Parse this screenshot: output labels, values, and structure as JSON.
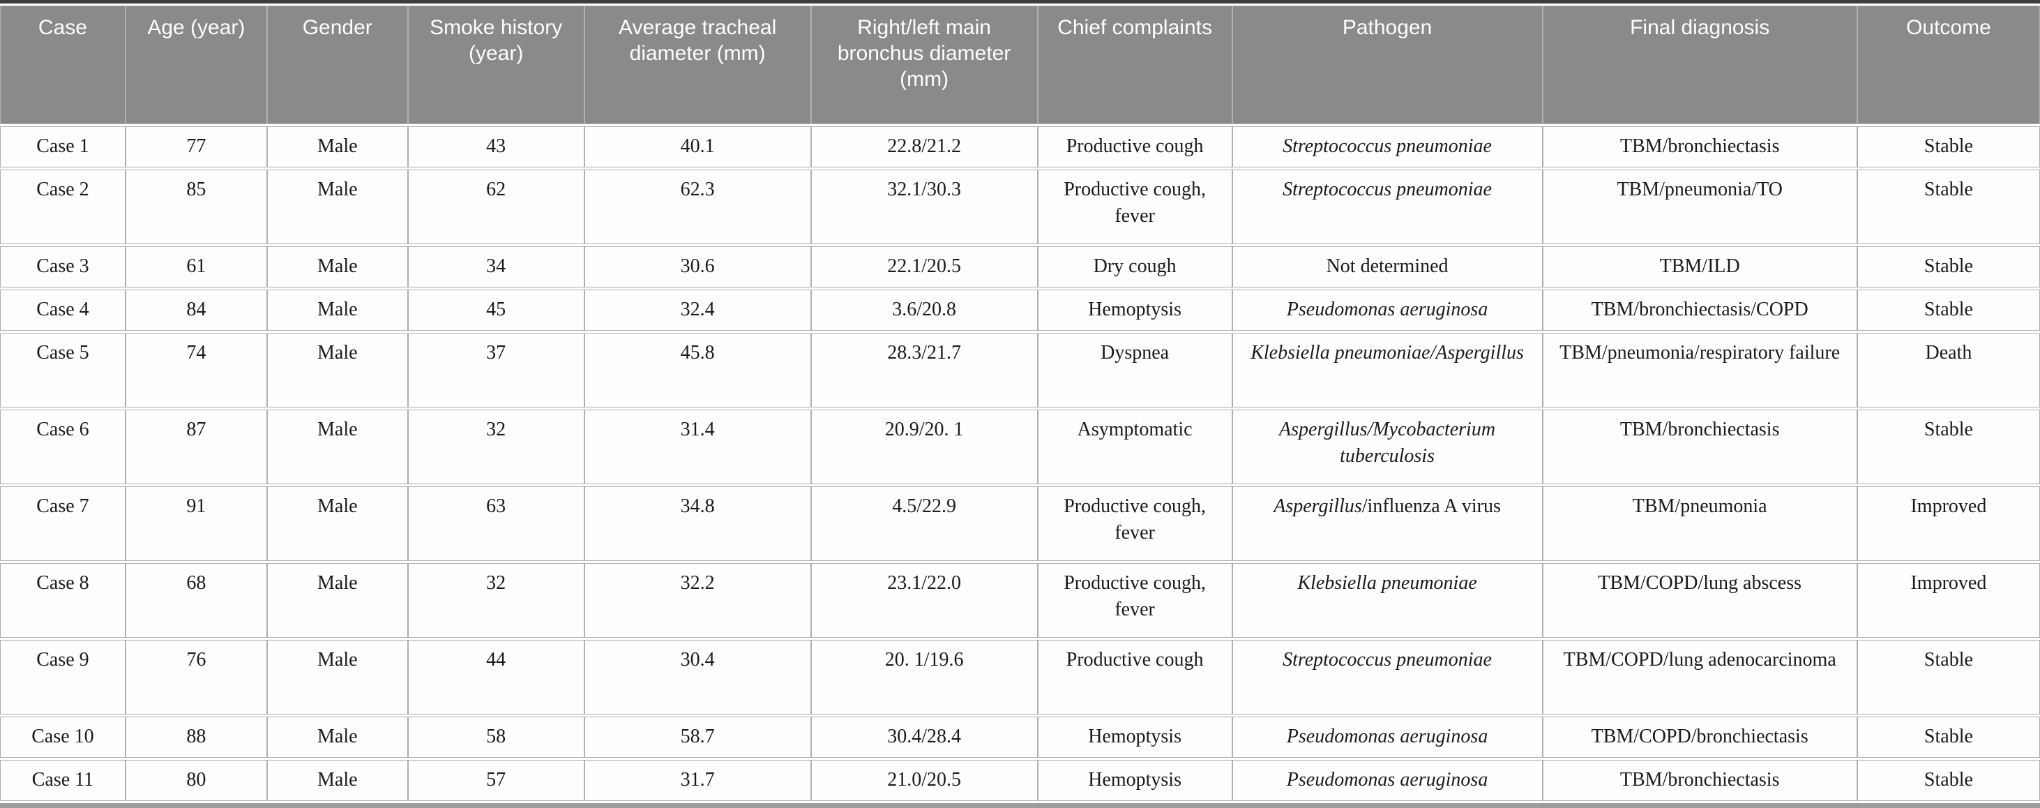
{
  "colors": {
    "header_bg": "#8a8a8a",
    "header_text": "#fdfdfd",
    "body_text": "#1a1a1a",
    "cell_border": "#aeaeae",
    "top_border": "#3d3d3d",
    "bottom_border": "#9c9c9c"
  },
  "table": {
    "columns": [
      "Case",
      "Age (year)",
      "Gender",
      "Smoke history (year)",
      "Average tracheal diameter (mm)",
      "Right/left main bronchus diameter (mm)",
      "Chief complaints",
      "Pathogen",
      "Final diagnosis",
      "Outcome"
    ],
    "rows": [
      {
        "case": "Case 1",
        "age": "77",
        "gender": "Male",
        "smoke": "43",
        "tracheal": "40.1",
        "bronchus": "22.8/21.2",
        "complaints": "Productive cough",
        "pathogen": [
          {
            "text": "Streptococcus pneumoniae",
            "italic": true
          }
        ],
        "diagnosis": "TBM/bronchiectasis",
        "outcome": "Stable",
        "tall": false
      },
      {
        "case": "Case 2",
        "age": "85",
        "gender": "Male",
        "smoke": "62",
        "tracheal": "62.3",
        "bronchus": "32.1/30.3",
        "complaints": "Productive cough, fever",
        "pathogen": [
          {
            "text": "Streptococcus pneumoniae",
            "italic": true
          }
        ],
        "diagnosis": "TBM/pneumonia/TO",
        "outcome": "Stable",
        "tall": true
      },
      {
        "case": "Case 3",
        "age": "61",
        "gender": "Male",
        "smoke": "34",
        "tracheal": "30.6",
        "bronchus": "22.1/20.5",
        "complaints": "Dry cough",
        "pathogen": [
          {
            "text": "Not determined",
            "italic": false
          }
        ],
        "diagnosis": "TBM/ILD",
        "outcome": "Stable",
        "tall": false
      },
      {
        "case": "Case 4",
        "age": "84",
        "gender": "Male",
        "smoke": "45",
        "tracheal": "32.4",
        "bronchus": "3.6/20.8",
        "complaints": "Hemoptysis",
        "pathogen": [
          {
            "text": "Pseudomonas aeruginosa",
            "italic": true
          }
        ],
        "diagnosis": "TBM/bronchiectasis/COPD",
        "outcome": "Stable",
        "tall": false
      },
      {
        "case": "Case 5",
        "age": "74",
        "gender": "Male",
        "smoke": "37",
        "tracheal": "45.8",
        "bronchus": "28.3/21.7",
        "complaints": "Dyspnea",
        "pathogen": [
          {
            "text": "Klebsiella pneumoniae/Aspergillus",
            "italic": true
          }
        ],
        "diagnosis": "TBM/pneumonia/respiratory failure",
        "outcome": "Death",
        "tall": true
      },
      {
        "case": "Case 6",
        "age": "87",
        "gender": "Male",
        "smoke": "32",
        "tracheal": "31.4",
        "bronchus": "20.9/20. 1",
        "complaints": "Asymptomatic",
        "pathogen": [
          {
            "text": "Aspergillus/Mycobacterium tuberculosis",
            "italic": true
          }
        ],
        "diagnosis": "TBM/bronchiectasis",
        "outcome": "Stable",
        "tall": true
      },
      {
        "case": "Case 7",
        "age": "91",
        "gender": "Male",
        "smoke": "63",
        "tracheal": "34.8",
        "bronchus": "4.5/22.9",
        "complaints": "Productive cough, fever",
        "pathogen": [
          {
            "text": "Aspergillus",
            "italic": true
          },
          {
            "text": "/influenza A virus",
            "italic": false
          }
        ],
        "diagnosis": "TBM/pneumonia",
        "outcome": "Improved",
        "tall": true
      },
      {
        "case": "Case 8",
        "age": "68",
        "gender": "Male",
        "smoke": "32",
        "tracheal": "32.2",
        "bronchus": "23.1/22.0",
        "complaints": "Productive cough, fever",
        "pathogen": [
          {
            "text": "Klebsiella pneumoniae",
            "italic": true
          }
        ],
        "diagnosis": "TBM/COPD/lung abscess",
        "outcome": "Improved",
        "tall": true
      },
      {
        "case": "Case 9",
        "age": "76",
        "gender": "Male",
        "smoke": "44",
        "tracheal": "30.4",
        "bronchus": "20. 1/19.6",
        "complaints": "Productive cough",
        "pathogen": [
          {
            "text": "Streptococcus pneumoniae",
            "italic": true
          }
        ],
        "diagnosis": "TBM/COPD/lung adenocarcinoma",
        "outcome": "Stable",
        "tall": true
      },
      {
        "case": "Case 10",
        "age": "88",
        "gender": "Male",
        "smoke": "58",
        "tracheal": "58.7",
        "bronchus": "30.4/28.4",
        "complaints": "Hemoptysis",
        "pathogen": [
          {
            "text": "Pseudomonas aeruginosa",
            "italic": true
          }
        ],
        "diagnosis": "TBM/COPD/bronchiectasis",
        "outcome": "Stable",
        "tall": false
      },
      {
        "case": "Case 11",
        "age": "80",
        "gender": "Male",
        "smoke": "57",
        "tracheal": "31.7",
        "bronchus": "21.0/20.5",
        "complaints": "Hemoptysis",
        "pathogen": [
          {
            "text": "Pseudomonas aeruginosa",
            "italic": true
          }
        ],
        "diagnosis": "TBM/bronchiectasis",
        "outcome": "Stable",
        "tall": false
      }
    ]
  }
}
